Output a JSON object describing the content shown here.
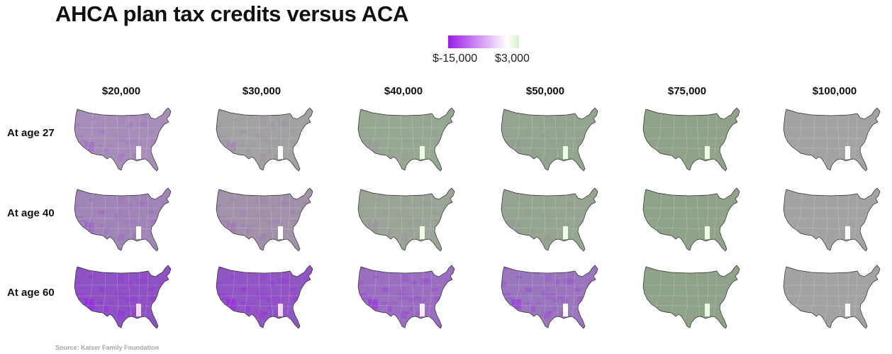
{
  "title": "AHCA plan tax credits versus ACA",
  "legend": {
    "min_label": "$-15,000",
    "max_label": "$3,000",
    "min_value": -15000,
    "max_value": 3000,
    "colors": {
      "min": "#9b1ce8",
      "mid": "#ffffff",
      "max": "#d7f2c7"
    }
  },
  "columns": [
    "$20,000",
    "$30,000",
    "$40,000",
    "$50,000",
    "$75,000",
    "$100,000"
  ],
  "rows": [
    {
      "label": "At age 27",
      "maps": [
        {
          "fill": "#a68eb9",
          "intensity": 0.35,
          "highlight": "#ffffff"
        },
        {
          "fill": "#a2a2a2",
          "intensity": 0.25,
          "highlight": "#ffffff"
        },
        {
          "fill": "#97a892",
          "intensity": 0.12,
          "highlight": "#eefbe5"
        },
        {
          "fill": "#93a58e",
          "intensity": 0.08,
          "highlight": "#eefbe5"
        },
        {
          "fill": "#8fa389",
          "intensity": 0.0,
          "highlight": "#eefbe5"
        },
        {
          "fill": "#a3a3a3",
          "intensity": 0.0,
          "highlight": "#ffffff"
        }
      ]
    },
    {
      "label": "At age 40",
      "maps": [
        {
          "fill": "#a085b7",
          "intensity": 0.4,
          "highlight": "#ffffff"
        },
        {
          "fill": "#a192a9",
          "intensity": 0.3,
          "highlight": "#ffffff"
        },
        {
          "fill": "#9aa596",
          "intensity": 0.15,
          "highlight": "#eefbe5"
        },
        {
          "fill": "#95a590",
          "intensity": 0.1,
          "highlight": "#eefbe5"
        },
        {
          "fill": "#8fa389",
          "intensity": 0.0,
          "highlight": "#eefbe5"
        },
        {
          "fill": "#a3a3a3",
          "intensity": 0.0,
          "highlight": "#ffffff"
        }
      ]
    },
    {
      "label": "At age 60",
      "maps": [
        {
          "fill": "#8e52c4",
          "intensity": 1.0,
          "highlight": "#f0d9fb"
        },
        {
          "fill": "#9156c3",
          "intensity": 0.95,
          "highlight": "#f0d9fb"
        },
        {
          "fill": "#9a6fc0",
          "intensity": 0.85,
          "highlight": "#f6ecfb"
        },
        {
          "fill": "#9a76bd",
          "intensity": 0.8,
          "highlight": "#ffffff"
        },
        {
          "fill": "#8fa389",
          "intensity": 0.0,
          "highlight": "#eefbe5"
        },
        {
          "fill": "#a3a3a3",
          "intensity": 0.0,
          "highlight": "#ffffff"
        }
      ]
    }
  ],
  "source": "Source: Kaiser Family Foundation"
}
